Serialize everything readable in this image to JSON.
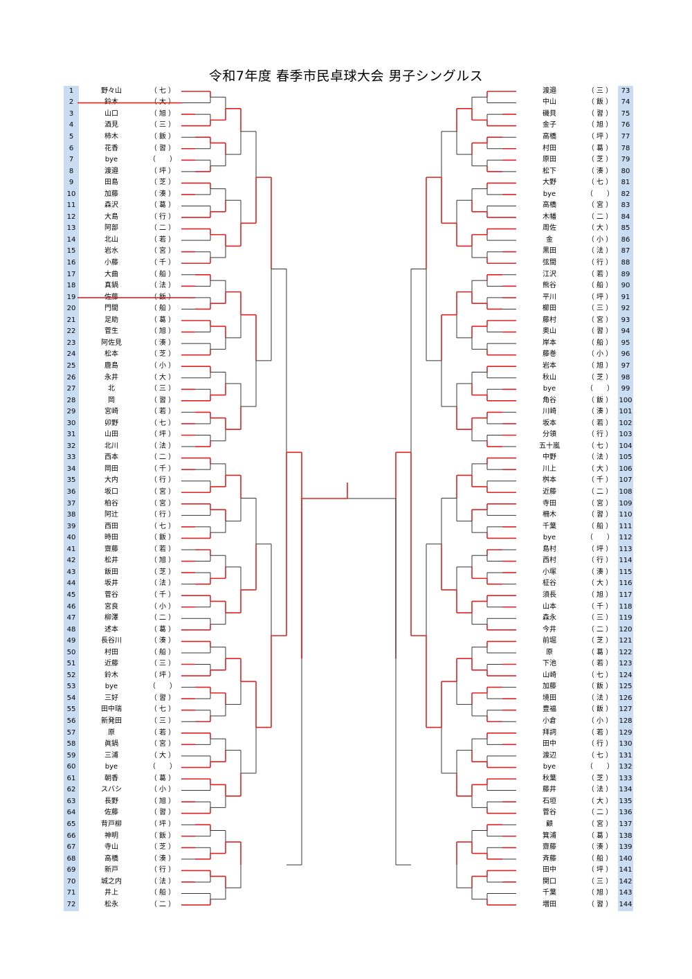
{
  "title": "令和7年度 春季市民卓球大会 男子シングルス",
  "colors": {
    "winner_line": "#e02020",
    "plain_line": "#333333",
    "number_band": "#c9dcf1"
  },
  "left_players": [
    {
      "no": "1",
      "name": "野々山",
      "pref": "（ 七 ）"
    },
    {
      "no": "2",
      "name": "鈴木",
      "pref": "（ 大 ）"
    },
    {
      "no": "3",
      "name": "山口",
      "pref": "（ 旭 ）"
    },
    {
      "no": "4",
      "name": "酒見",
      "pref": "（ 三 ）"
    },
    {
      "no": "5",
      "name": "柿木",
      "pref": "（ 飯 ）"
    },
    {
      "no": "6",
      "name": "花香",
      "pref": "（ 習 ）"
    },
    {
      "no": "7",
      "name": "bye",
      "pref": "（　　）"
    },
    {
      "no": "8",
      "name": "渡邉",
      "pref": "（ 坪 ）"
    },
    {
      "no": "9",
      "name": "田島",
      "pref": "（ 芝 ）"
    },
    {
      "no": "10",
      "name": "加藤",
      "pref": "（ 湊 ）"
    },
    {
      "no": "11",
      "name": "森沢",
      "pref": "（ 葛 ）"
    },
    {
      "no": "12",
      "name": "大島",
      "pref": "（ 行 ）"
    },
    {
      "no": "13",
      "name": "阿部",
      "pref": "（ 二 ）"
    },
    {
      "no": "14",
      "name": "北山",
      "pref": "（ 若 ）"
    },
    {
      "no": "15",
      "name": "岩水",
      "pref": "（ 宮 ）"
    },
    {
      "no": "16",
      "name": "小藤",
      "pref": "（ 千 ）"
    },
    {
      "no": "17",
      "name": "大曲",
      "pref": "（ 船 ）"
    },
    {
      "no": "18",
      "name": "真鍋",
      "pref": "（ 法 ）"
    },
    {
      "no": "19",
      "name": "佐藤",
      "pref": "（ 飯 ）"
    },
    {
      "no": "20",
      "name": "門間",
      "pref": "（ 船 ）"
    },
    {
      "no": "21",
      "name": "足助",
      "pref": "（ 葛 ）"
    },
    {
      "no": "22",
      "name": "菅生",
      "pref": "（ 旭 ）"
    },
    {
      "no": "23",
      "name": "阿佐見",
      "pref": "（ 湊 ）"
    },
    {
      "no": "24",
      "name": "松本",
      "pref": "（ 芝 ）"
    },
    {
      "no": "25",
      "name": "鹿島",
      "pref": "（ 小 ）"
    },
    {
      "no": "26",
      "name": "永井",
      "pref": "（ 大 ）"
    },
    {
      "no": "27",
      "name": "北",
      "pref": "（ 三 ）"
    },
    {
      "no": "28",
      "name": "岡",
      "pref": "（ 習 ）"
    },
    {
      "no": "29",
      "name": "宮崎",
      "pref": "（ 若 ）"
    },
    {
      "no": "30",
      "name": "卯野",
      "pref": "（ 七 ）"
    },
    {
      "no": "31",
      "name": "山田",
      "pref": "（ 坪 ）"
    },
    {
      "no": "32",
      "name": "北川",
      "pref": "（ 法 ）"
    },
    {
      "no": "33",
      "name": "西本",
      "pref": "（ 二 ）"
    },
    {
      "no": "34",
      "name": "岡田",
      "pref": "（ 千 ）"
    },
    {
      "no": "35",
      "name": "大内",
      "pref": "（ 行 ）"
    },
    {
      "no": "36",
      "name": "坂口",
      "pref": "（ 宮 ）"
    },
    {
      "no": "37",
      "name": "柏谷",
      "pref": "（ 宮 ）"
    },
    {
      "no": "38",
      "name": "阿辻",
      "pref": "（ 行 ）"
    },
    {
      "no": "39",
      "name": "西田",
      "pref": "（ 七 ）"
    },
    {
      "no": "40",
      "name": "時田",
      "pref": "（ 飯 ）"
    },
    {
      "no": "41",
      "name": "齋藤",
      "pref": "（ 若 ）"
    },
    {
      "no": "42",
      "name": "松井",
      "pref": "（ 旭 ）"
    },
    {
      "no": "43",
      "name": "飯田",
      "pref": "（ 芝 ）"
    },
    {
      "no": "44",
      "name": "坂井",
      "pref": "（ 法 ）"
    },
    {
      "no": "45",
      "name": "菅谷",
      "pref": "（ 千 ）"
    },
    {
      "no": "46",
      "name": "宮良",
      "pref": "（ 小 ）"
    },
    {
      "no": "47",
      "name": "柳澤",
      "pref": "（ 二 ）"
    },
    {
      "no": "48",
      "name": "述本",
      "pref": "（ 葛 ）"
    },
    {
      "no": "49",
      "name": "長谷川",
      "pref": "（ 湊 ）"
    },
    {
      "no": "50",
      "name": "村田",
      "pref": "（ 船 ）"
    },
    {
      "no": "51",
      "name": "近藤",
      "pref": "（ 三 ）"
    },
    {
      "no": "52",
      "name": "鈴木",
      "pref": "（ 坪 ）"
    },
    {
      "no": "53",
      "name": "bye",
      "pref": "（　　）"
    },
    {
      "no": "54",
      "name": "三好",
      "pref": "（ 習 ）"
    },
    {
      "no": "55",
      "name": "田中瑞",
      "pref": "（ 七 ）"
    },
    {
      "no": "56",
      "name": "新発田",
      "pref": "（ 三 ）"
    },
    {
      "no": "57",
      "name": "原",
      "pref": "（ 若 ）"
    },
    {
      "no": "58",
      "name": "眞鍋",
      "pref": "（ 宮 ）"
    },
    {
      "no": "59",
      "name": "三浦",
      "pref": "（ 大 ）"
    },
    {
      "no": "60",
      "name": "bye",
      "pref": "（　　）"
    },
    {
      "no": "61",
      "name": "朝香",
      "pref": "（ 葛 ）"
    },
    {
      "no": "62",
      "name": "スバシ",
      "pref": "（ 小 ）"
    },
    {
      "no": "63",
      "name": "長野",
      "pref": "（ 旭 ）"
    },
    {
      "no": "64",
      "name": "佐藤",
      "pref": "（ 習 ）"
    },
    {
      "no": "65",
      "name": "背戸柳",
      "pref": "（ 坪 ）"
    },
    {
      "no": "66",
      "name": "神明",
      "pref": "（ 飯 ）"
    },
    {
      "no": "67",
      "name": "寺山",
      "pref": "（ 芝 ）"
    },
    {
      "no": "68",
      "name": "高橋",
      "pref": "（ 湊 ）"
    },
    {
      "no": "69",
      "name": "新戸",
      "pref": "（ 行 ）"
    },
    {
      "no": "70",
      "name": "城之内",
      "pref": "（ 法 ）"
    },
    {
      "no": "71",
      "name": "井上",
      "pref": "（ 船 ）"
    },
    {
      "no": "72",
      "name": "松永",
      "pref": "（ 二 ）"
    }
  ],
  "right_players": [
    {
      "no": "73",
      "name": "渡邉",
      "pref": "（ 三 ）"
    },
    {
      "no": "74",
      "name": "中山",
      "pref": "（ 飯 ）"
    },
    {
      "no": "75",
      "name": "磯貝",
      "pref": "（ 習 ）"
    },
    {
      "no": "76",
      "name": "金子",
      "pref": "（ 旭 ）"
    },
    {
      "no": "77",
      "name": "高橋",
      "pref": "（ 坪 ）"
    },
    {
      "no": "78",
      "name": "村田",
      "pref": "（ 葛 ）"
    },
    {
      "no": "79",
      "name": "原田",
      "pref": "（ 芝 ）"
    },
    {
      "no": "80",
      "name": "松下",
      "pref": "（ 湊 ）"
    },
    {
      "no": "81",
      "name": "大野",
      "pref": "（ 七 ）"
    },
    {
      "no": "82",
      "name": "bye",
      "pref": "（　　）"
    },
    {
      "no": "83",
      "name": "高橋",
      "pref": "（ 宮 ）"
    },
    {
      "no": "84",
      "name": "木幡",
      "pref": "（ 二 ）"
    },
    {
      "no": "85",
      "name": "周佐",
      "pref": "（ 大 ）"
    },
    {
      "no": "86",
      "name": "金",
      "pref": "（ 小 ）"
    },
    {
      "no": "87",
      "name": "黒田",
      "pref": "（ 法 ）"
    },
    {
      "no": "88",
      "name": "弦間",
      "pref": "（ 行 ）"
    },
    {
      "no": "89",
      "name": "江沢",
      "pref": "（ 若 ）"
    },
    {
      "no": "90",
      "name": "熊谷",
      "pref": "（ 船 ）"
    },
    {
      "no": "91",
      "name": "平川",
      "pref": "（ 坪 ）"
    },
    {
      "no": "92",
      "name": "櫛田",
      "pref": "（ 三 ）"
    },
    {
      "no": "93",
      "name": "藤村",
      "pref": "（ 宮 ）"
    },
    {
      "no": "94",
      "name": "奥山",
      "pref": "（ 習 ）"
    },
    {
      "no": "95",
      "name": "岸本",
      "pref": "（ 船 ）"
    },
    {
      "no": "96",
      "name": "藤巻",
      "pref": "（ 小 ）"
    },
    {
      "no": "97",
      "name": "岩本",
      "pref": "（ 旭 ）"
    },
    {
      "no": "98",
      "name": "秋山",
      "pref": "（ 芝 ）"
    },
    {
      "no": "99",
      "name": "bye",
      "pref": "（　　）"
    },
    {
      "no": "100",
      "name": "角谷",
      "pref": "（ 飯 ）"
    },
    {
      "no": "101",
      "name": "川崎",
      "pref": "（ 湊 ）"
    },
    {
      "no": "102",
      "name": "坂本",
      "pref": "（ 若 ）"
    },
    {
      "no": "103",
      "name": "分領",
      "pref": "（ 行 ）"
    },
    {
      "no": "104",
      "name": "五十嵐",
      "pref": "（ 七 ）"
    },
    {
      "no": "105",
      "name": "中野",
      "pref": "（ 法 ）"
    },
    {
      "no": "106",
      "name": "川上",
      "pref": "（ 大 ）"
    },
    {
      "no": "107",
      "name": "桝本",
      "pref": "（ 千 ）"
    },
    {
      "no": "108",
      "name": "近藤",
      "pref": "（ 二 ）"
    },
    {
      "no": "109",
      "name": "寺田",
      "pref": "（ 宮 ）"
    },
    {
      "no": "110",
      "name": "柵木",
      "pref": "（ 習 ）"
    },
    {
      "no": "111",
      "name": "千葉",
      "pref": "（ 船 ）"
    },
    {
      "no": "112",
      "name": "bye",
      "pref": "（　　）"
    },
    {
      "no": "113",
      "name": "島村",
      "pref": "（ 坪 ）"
    },
    {
      "no": "114",
      "name": "西村",
      "pref": "（ 行 ）"
    },
    {
      "no": "115",
      "name": "小塚",
      "pref": "（ 湊 ）"
    },
    {
      "no": "116",
      "name": "柾谷",
      "pref": "（ 大 ）"
    },
    {
      "no": "117",
      "name": "須長",
      "pref": "（ 旭 ）"
    },
    {
      "no": "118",
      "name": "山本",
      "pref": "（ 千 ）"
    },
    {
      "no": "119",
      "name": "森永",
      "pref": "（ 三 ）"
    },
    {
      "no": "120",
      "name": "今井",
      "pref": "（ 二 ）"
    },
    {
      "no": "121",
      "name": "前堀",
      "pref": "（ 芝 ）"
    },
    {
      "no": "122",
      "name": "原",
      "pref": "（ 葛 ）"
    },
    {
      "no": "123",
      "name": "下池",
      "pref": "（ 若 ）"
    },
    {
      "no": "124",
      "name": "山崎",
      "pref": "（ 七 ）"
    },
    {
      "no": "125",
      "name": "加藤",
      "pref": "（ 飯 ）"
    },
    {
      "no": "126",
      "name": "境田",
      "pref": "（ 法 ）"
    },
    {
      "no": "127",
      "name": "豊福",
      "pref": "（ 飯 ）"
    },
    {
      "no": "128",
      "name": "小倉",
      "pref": "（ 小 ）"
    },
    {
      "no": "129",
      "name": "拜詞",
      "pref": "（ 若 ）"
    },
    {
      "no": "130",
      "name": "田中",
      "pref": "（ 行 ）"
    },
    {
      "no": "131",
      "name": "渡辺",
      "pref": "（ 七 ）"
    },
    {
      "no": "132",
      "name": "bye",
      "pref": "（　　）"
    },
    {
      "no": "133",
      "name": "秋葉",
      "pref": "（ 芝 ）"
    },
    {
      "no": "134",
      "name": "藤井",
      "pref": "（ 法 ）"
    },
    {
      "no": "135",
      "name": "石垣",
      "pref": "（ 大 ）"
    },
    {
      "no": "136",
      "name": "菅谷",
      "pref": "（ 二 ）"
    },
    {
      "no": "137",
      "name": "顧",
      "pref": "（ 宮 ）"
    },
    {
      "no": "138",
      "name": "箕浦",
      "pref": "（ 葛 ）"
    },
    {
      "no": "139",
      "name": "齋藤",
      "pref": "（ 湊 ）"
    },
    {
      "no": "140",
      "name": "斉藤",
      "pref": "（ 船 ）"
    },
    {
      "no": "141",
      "name": "田中",
      "pref": "（ 坪 ）"
    },
    {
      "no": "142",
      "name": "関口",
      "pref": "（ 三 ）"
    },
    {
      "no": "143",
      "name": "千葉",
      "pref": "（ 旭 ）"
    },
    {
      "no": "144",
      "name": "増田",
      "pref": "（ 習 ）"
    }
  ]
}
